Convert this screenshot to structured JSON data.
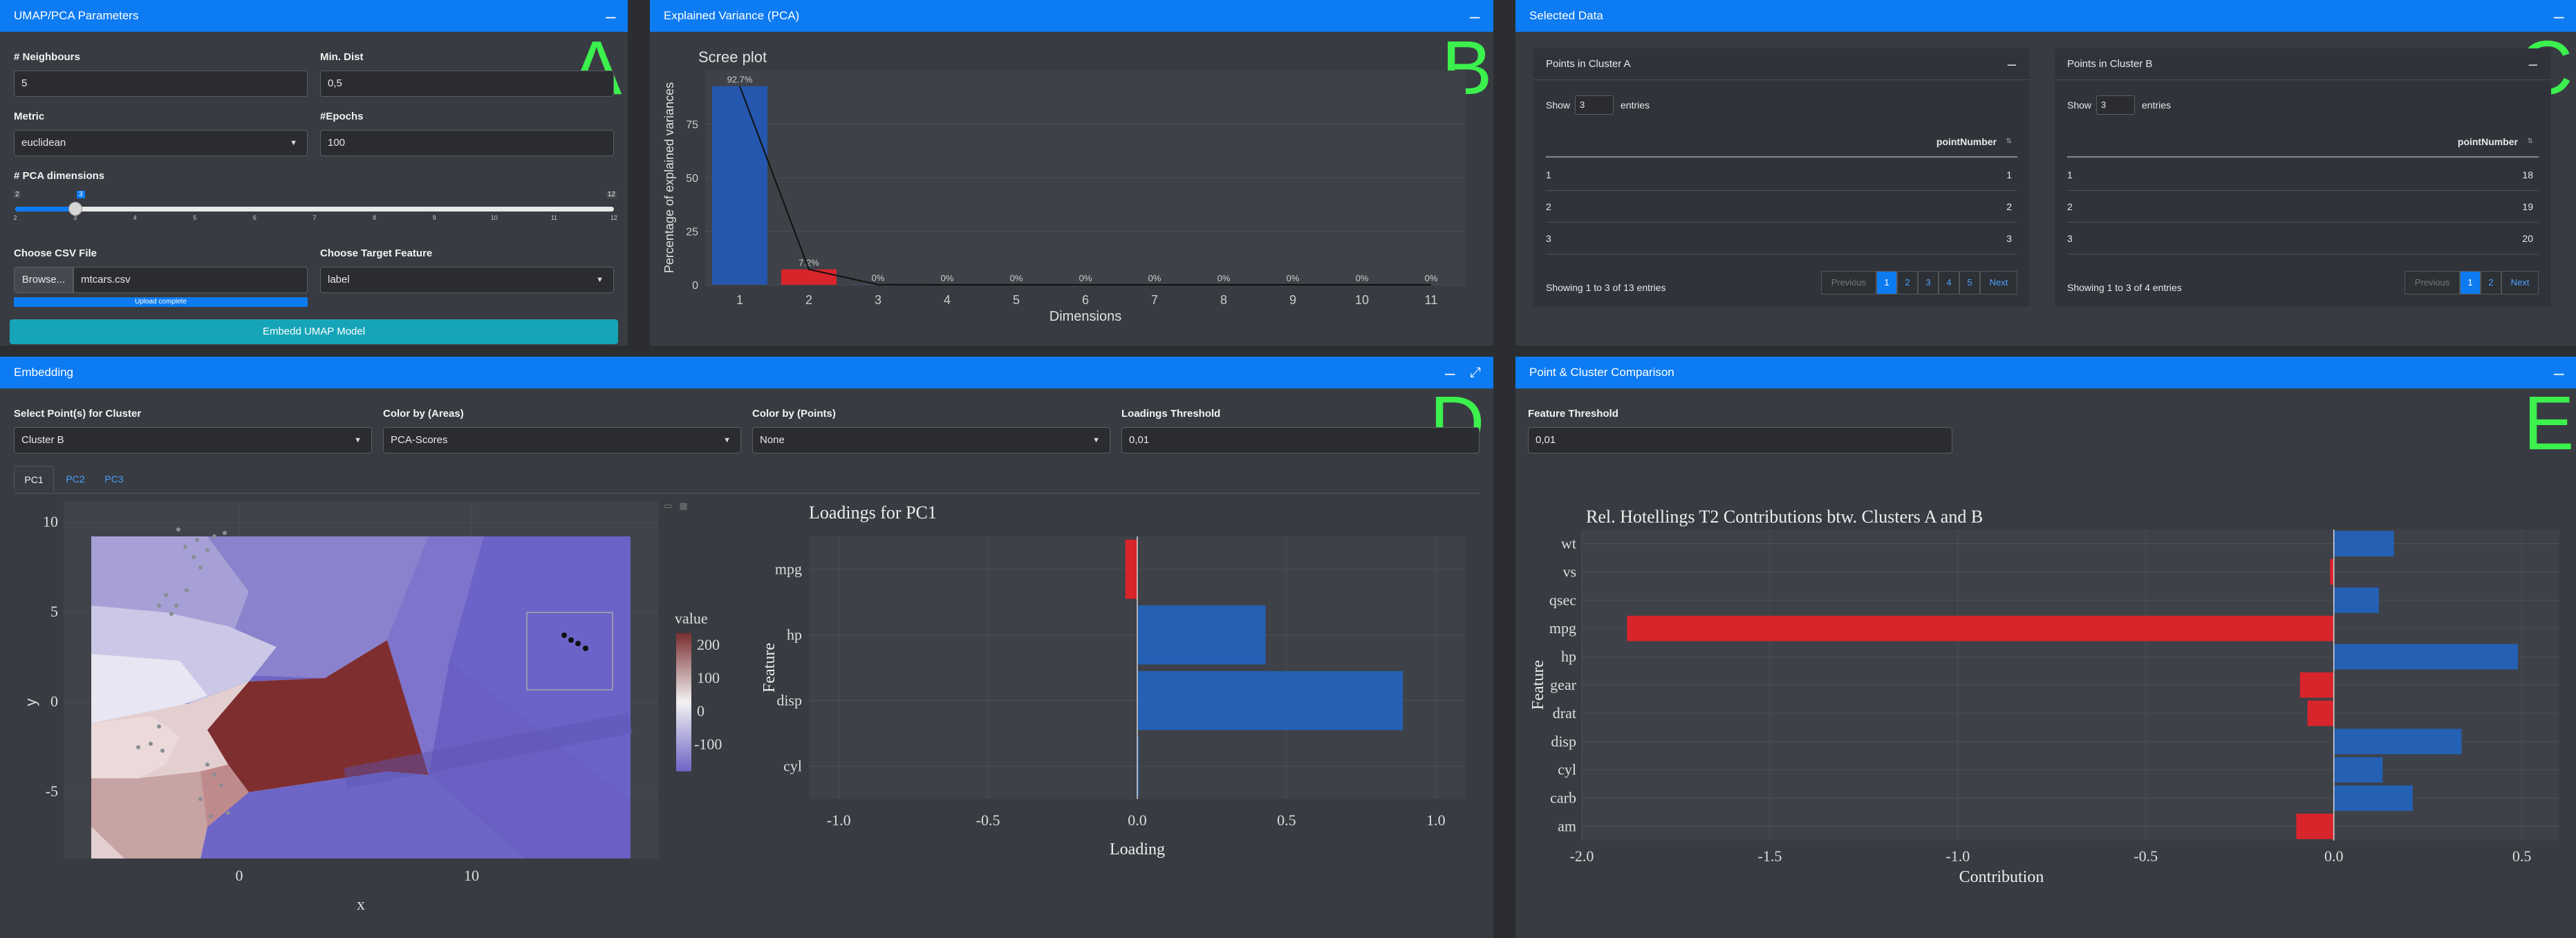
{
  "panelA": {
    "title": "UMAP/PCA Parameters",
    "letter": "A",
    "neighbours_label": "# Neighbours",
    "neighbours_value": "5",
    "mindist_label": "Min. Dist",
    "mindist_value": "0,5",
    "metric_label": "Metric",
    "metric_value": "euclidean",
    "epochs_label": "#Epochs",
    "epochs_value": "100",
    "pca_label": "# PCA dimensions",
    "slider": {
      "min": "2",
      "max": "12",
      "value": "3",
      "ticks": [
        "2",
        "3",
        "4",
        "5",
        "6",
        "7",
        "8",
        "9",
        "10",
        "11",
        "12"
      ],
      "fraction": 0.1
    },
    "csv_label": "Choose CSV File",
    "browse_label": "Browse...",
    "file_value": "mtcars.csv",
    "upload_status": "Upload complete",
    "upload_progress": 1.0,
    "target_label": "Choose Target Feature",
    "target_value": "label",
    "embed_button": "Embedd UMAP Model"
  },
  "panelB": {
    "title": "Explained Variance (PCA)",
    "letter": "B",
    "chart_data": {
      "type": "bar",
      "title": "Scree plot",
      "xlabel": "Dimensions",
      "ylabel": "Percentage of explained variances",
      "categories": [
        "1",
        "2",
        "3",
        "4",
        "5",
        "6",
        "7",
        "8",
        "9",
        "10",
        "11"
      ],
      "values": [
        92.7,
        7.2,
        0.1,
        0,
        0,
        0,
        0,
        0,
        0,
        0,
        0
      ],
      "labels": [
        "92.7%",
        "7.2%",
        "0%",
        "0%",
        "0%",
        "0%",
        "0%",
        "0%",
        "0%",
        "0%",
        "0%"
      ],
      "yticks": [
        0,
        25,
        50,
        75
      ],
      "ylim": [
        0,
        100
      ],
      "colors": [
        "#2457ad",
        "#d8242b"
      ]
    }
  },
  "panelC": {
    "title": "Selected Data",
    "letter": "C",
    "tableA": {
      "title": "Points in Cluster A",
      "show": "Show",
      "entries_count": "3",
      "entries": "entries",
      "column": "pointNumber",
      "rows": [
        [
          "1",
          "1"
        ],
        [
          "2",
          "2"
        ],
        [
          "3",
          "3"
        ]
      ],
      "info": "Showing 1 to 3 of 13 entries",
      "pager": [
        "Previous",
        "1",
        "2",
        "3",
        "4",
        "5",
        "Next"
      ]
    },
    "tableB": {
      "title": "Points in Cluster B",
      "show": "Show",
      "entries_count": "3",
      "entries": "entries",
      "column": "pointNumber",
      "rows": [
        [
          "1",
          "18"
        ],
        [
          "2",
          "19"
        ],
        [
          "3",
          "20"
        ]
      ],
      "info": "Showing 1 to 3 of 4 entries",
      "pager": [
        "Previous",
        "1",
        "2",
        "Next"
      ]
    }
  },
  "panelD": {
    "title": "Embedding",
    "letter": "D",
    "select_label": "Select Point(s) for Cluster",
    "select_value": "Cluster B",
    "colorareas_label": "Color by (Areas)",
    "colorareas_value": "PCA-Scores",
    "colorpoints_label": "Color by (Points)",
    "colorpoints_value": "None",
    "loadings_label": "Loadings Threshold",
    "loadings_value": "0,01",
    "tabs": [
      "PC1",
      "PC2",
      "PC3"
    ],
    "map": {
      "xlabel": "x",
      "ylabel": "y",
      "xticks": [
        "0",
        "10"
      ],
      "yticks": [
        "10",
        "5",
        "0",
        "-5"
      ],
      "legend_title": "value",
      "legend_ticks": [
        "200",
        "100",
        "0",
        "-100"
      ]
    },
    "loadings_chart": {
      "type": "bar",
      "title": "Loadings for PC1",
      "xlabel": "Loading",
      "ylabel": "Feature",
      "categories": [
        "mpg",
        "hp",
        "disp",
        "cyl"
      ],
      "values": [
        -0.04,
        0.43,
        0.89,
        0.005
      ],
      "xticks": [
        "-1.0",
        "-0.5",
        "0.0",
        "0.5",
        "1.0"
      ],
      "xlim": [
        -1.1,
        1.1
      ]
    }
  },
  "panelE": {
    "title": "Point & Cluster Comparison",
    "letter": "E",
    "threshold_label": "Feature Threshold",
    "threshold_value": "0,01",
    "chart_data": {
      "type": "bar",
      "title": "Rel. Hotellings T2 Contributions btw. Clusters A and B",
      "xlabel": "Contribution",
      "ylabel": "Feature",
      "categories": [
        "wt",
        "vs",
        "qsec",
        "mpg",
        "hp",
        "gear",
        "drat",
        "disp",
        "cyl",
        "carb",
        "am"
      ],
      "values": [
        0.16,
        -0.01,
        0.12,
        -1.88,
        0.49,
        -0.09,
        -0.07,
        0.34,
        0.13,
        0.21,
        -0.1
      ],
      "xticks": [
        "-2.0",
        "-1.5",
        "-1.0",
        "-0.5",
        "0.0",
        "0.5"
      ],
      "xlim": [
        -2.0,
        0.6
      ]
    }
  }
}
